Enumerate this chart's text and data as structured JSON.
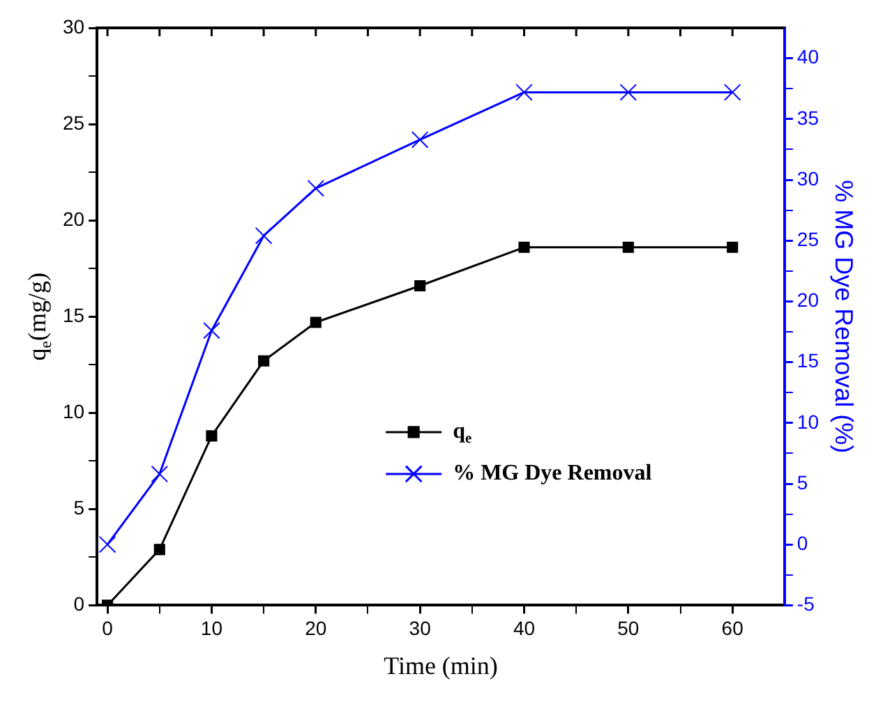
{
  "chart_data": {
    "type": "line",
    "xlabel": "Time (min)",
    "ylabel": "q$_{e}$(mg/g)",
    "y2label": "% MG Dye Removal (%)",
    "x": [
      0,
      5,
      10,
      15,
      20,
      30,
      40,
      50,
      60
    ],
    "series": [
      {
        "name": "q$_{e}$",
        "color": "#000000",
        "marker": "square",
        "values": [
          0,
          2.9,
          8.8,
          12.7,
          14.7,
          16.6,
          18.6,
          18.6,
          18.6
        ]
      },
      {
        "name": "% MG Dye Removal",
        "color": "#0000ff",
        "marker": "cross",
        "axis": "y2",
        "values": [
          0,
          5.8,
          17.6,
          25.4,
          29.3,
          33.3,
          37.2,
          37.2,
          37.2
        ]
      }
    ],
    "xlim": [
      -1,
      65
    ],
    "xticks": [
      0,
      {
        "value": 5,
        "label": null
      },
      10,
      {
        "value": 15,
        "label": null
      },
      20,
      {
        "value": 25,
        "label": null
      },
      30,
      {
        "value": 35,
        "label": null
      },
      40,
      {
        "value": 45,
        "label": null
      },
      50,
      {
        "value": 55,
        "label": null
      },
      60
    ],
    "ylim": [
      0,
      30
    ],
    "yticks": [
      0,
      {
        "value": 2.5,
        "label": null
      },
      5,
      {
        "value": 7.5,
        "label": null
      },
      10,
      {
        "value": 12.5,
        "label": null
      },
      15,
      {
        "value": 17.5,
        "label": null
      },
      20,
      {
        "value": 22.5,
        "label": null
      },
      25,
      {
        "value": 27.5,
        "label": null
      },
      30
    ],
    "y2lim": [
      -5,
      42.5
    ],
    "y2ticks": [
      -5,
      {
        "value": -2.5,
        "label": null
      },
      0,
      {
        "value": 2.5,
        "label": null
      },
      5,
      {
        "value": 7.5,
        "label": null
      },
      10,
      {
        "value": 12.5,
        "label": null
      },
      15,
      {
        "value": 17.5,
        "label": null
      },
      20,
      {
        "value": 22.5,
        "label": null
      },
      25,
      {
        "value": 27.5,
        "label": null
      },
      30,
      {
        "value": 32.5,
        "label": null
      },
      35,
      {
        "value": 37.5,
        "label": null
      },
      40
    ],
    "legend": "center",
    "grid": false,
    "line_style": "solid"
  }
}
